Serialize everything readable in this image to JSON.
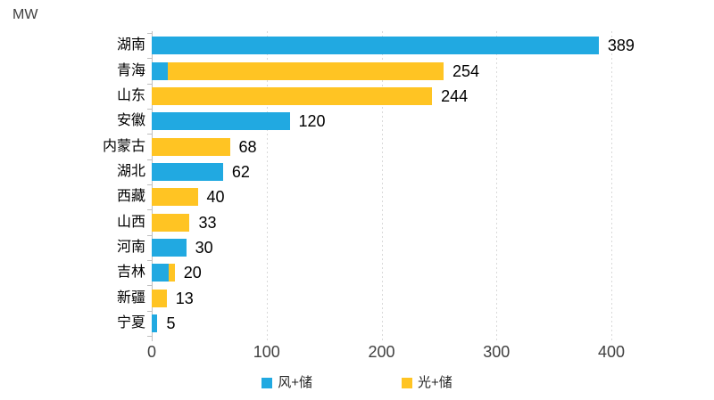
{
  "chart_data": {
    "type": "bar",
    "orientation": "horizontal",
    "title": "",
    "unit_label": "MW",
    "xlabel": "",
    "ylabel": "",
    "xlim": [
      0,
      400
    ],
    "xticks": [
      0,
      100,
      200,
      300,
      400
    ],
    "grid": "vertical-dashed",
    "legend_position": "bottom",
    "categories": [
      "湖南",
      "青海",
      "山东",
      "安徽",
      "内蒙古",
      "湖北",
      "西藏",
      "山西",
      "河南",
      "吉林",
      "新疆",
      "宁夏"
    ],
    "series": [
      {
        "name": "风+储",
        "color": "#21A9E1",
        "values": [
          389,
          14,
          0,
          120,
          0,
          62,
          0,
          0,
          30,
          15,
          0,
          5
        ]
      },
      {
        "name": "光+储",
        "color": "#FFC423",
        "values": [
          0,
          240,
          244,
          0,
          68,
          0,
          40,
          33,
          0,
          5,
          13,
          0
        ]
      }
    ],
    "totals": [
      389,
      254,
      244,
      120,
      68,
      62,
      40,
      33,
      30,
      20,
      13,
      5
    ],
    "colors": {
      "axis": "#BFBFBF",
      "grid": "#D9D9D9",
      "tick_text": "#404040",
      "label_text": "#000000"
    }
  }
}
